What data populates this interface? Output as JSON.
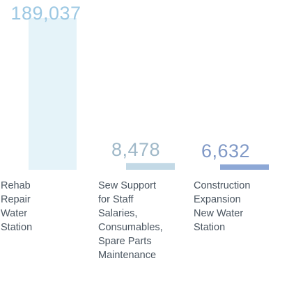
{
  "chart_data": {
    "type": "bar",
    "title": "",
    "xlabel": "",
    "ylabel": "",
    "ylim": [
      0,
      189037
    ],
    "grid": false,
    "legend": "none",
    "categories": [
      [
        "Rehab",
        "Repair",
        "Water",
        "Station"
      ],
      [
        "Sew Support",
        "for Staff",
        "Salaries,",
        "Consumables,",
        "Spare Parts",
        "Maintenance"
      ],
      [
        "Construction",
        "Expansion",
        "New Water",
        "Station"
      ]
    ],
    "values": [
      189037,
      8478,
      6632
    ],
    "value_labels": [
      "189,037",
      "8,478",
      "6,632"
    ],
    "colors": [
      "#e5f3f9",
      "#c3d9e6",
      "#8da8d6"
    ]
  }
}
